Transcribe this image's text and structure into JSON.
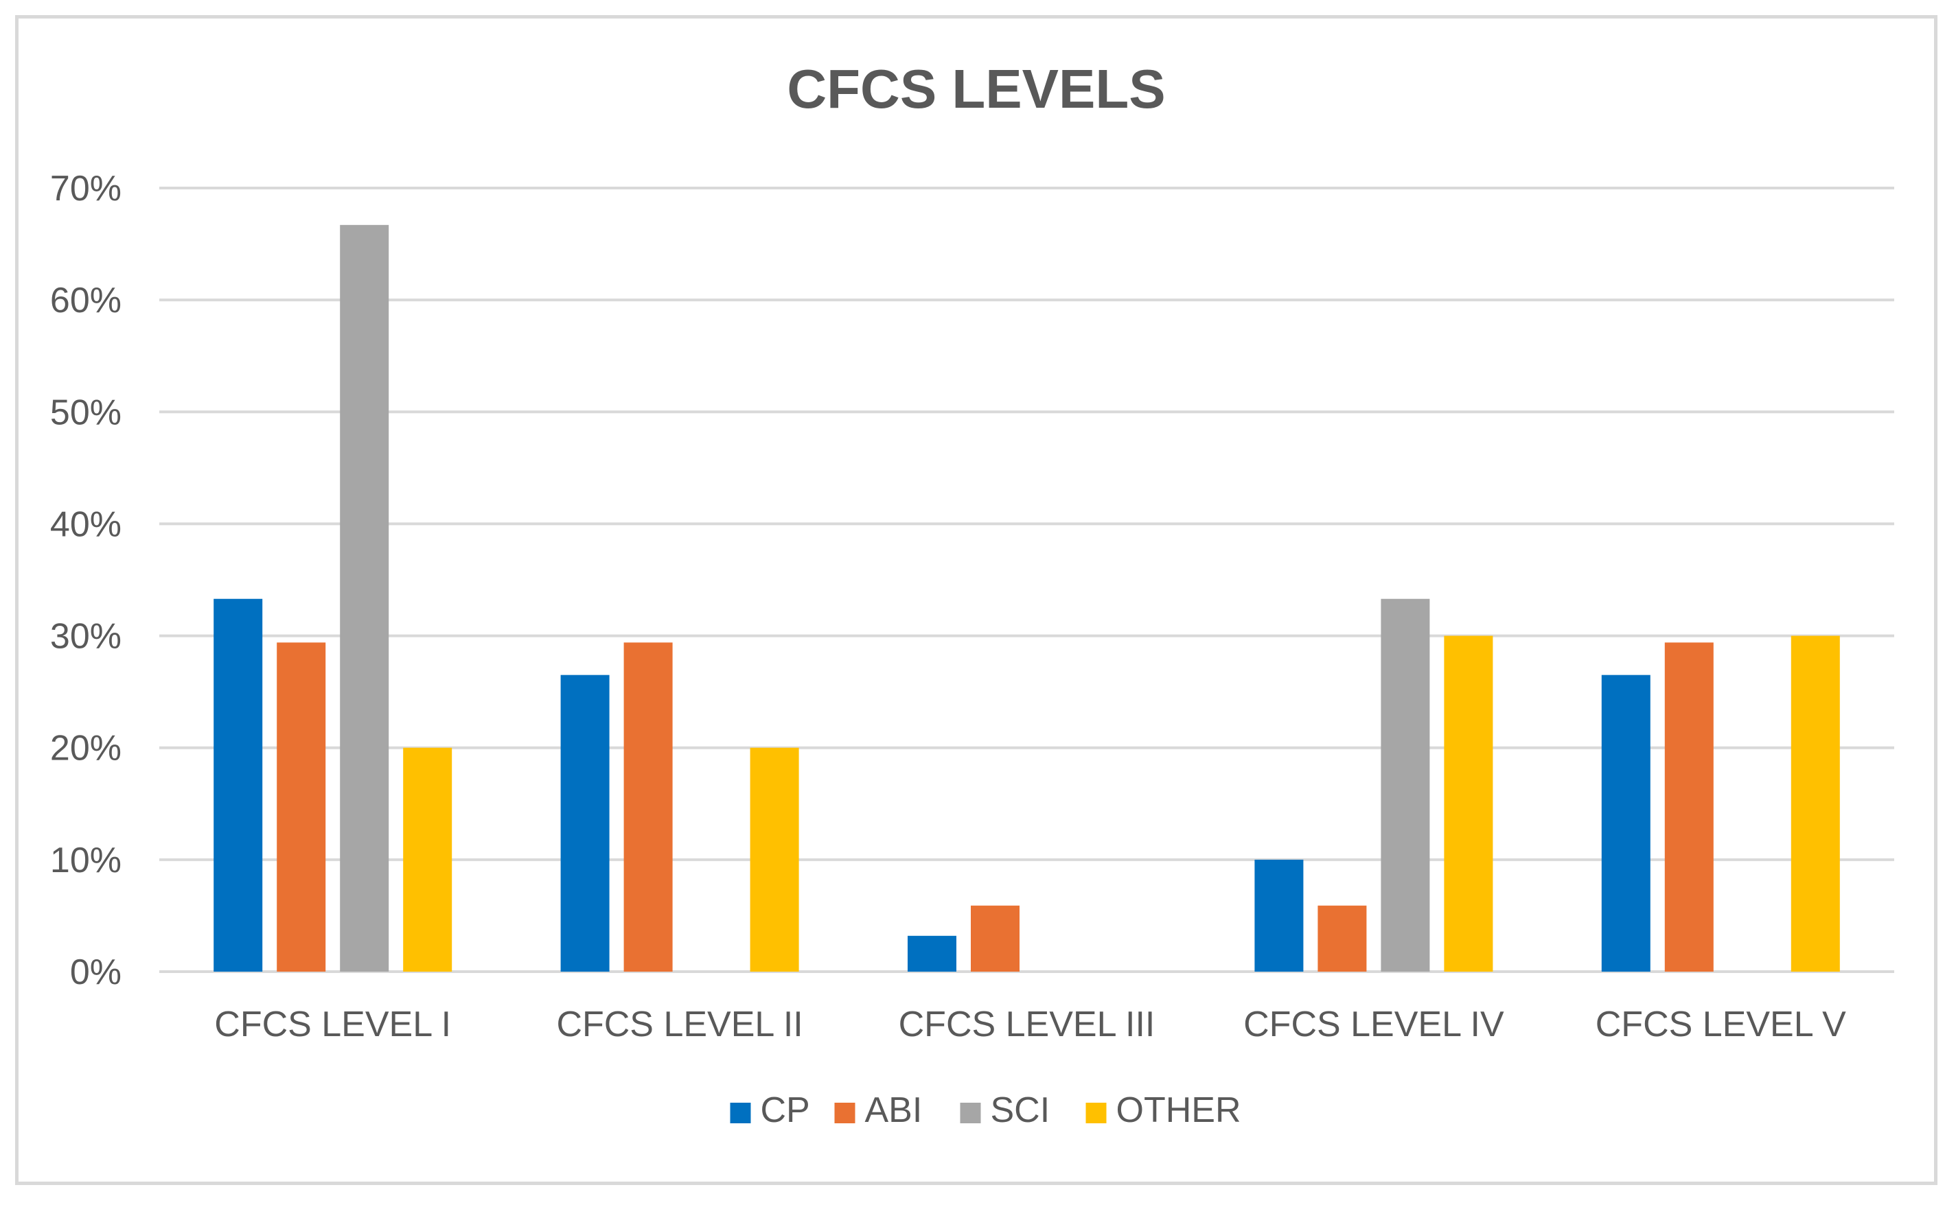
{
  "chart_data": {
    "type": "bar",
    "title": "CFCS LEVELS",
    "xlabel": "",
    "ylabel": "",
    "ylim": [
      0,
      70
    ],
    "yticks": [
      0,
      10,
      20,
      30,
      40,
      50,
      60,
      70
    ],
    "ytick_labels": [
      "0%",
      "10%",
      "20%",
      "30%",
      "40%",
      "50%",
      "60%",
      "70%"
    ],
    "grid": true,
    "legend_position": "bottom",
    "categories": [
      "CFCS LEVEL I",
      "CFCS LEVEL II",
      "CFCS LEVEL III",
      "CFCS LEVEL IV",
      "CFCS LEVEL V"
    ],
    "series": [
      {
        "name": "CP",
        "color": "#0070c0",
        "values": [
          33.3,
          26.5,
          3.2,
          10.0,
          26.5
        ]
      },
      {
        "name": "ABI",
        "color": "#e97132",
        "values": [
          29.4,
          29.4,
          5.9,
          5.9,
          29.4
        ]
      },
      {
        "name": "SCI",
        "color": "#a6a6a6",
        "values": [
          66.7,
          0,
          0,
          33.3,
          0
        ]
      },
      {
        "name": "OTHER",
        "color": "#ffc000",
        "values": [
          20.0,
          20.0,
          0,
          30.0,
          30.0
        ]
      }
    ]
  }
}
